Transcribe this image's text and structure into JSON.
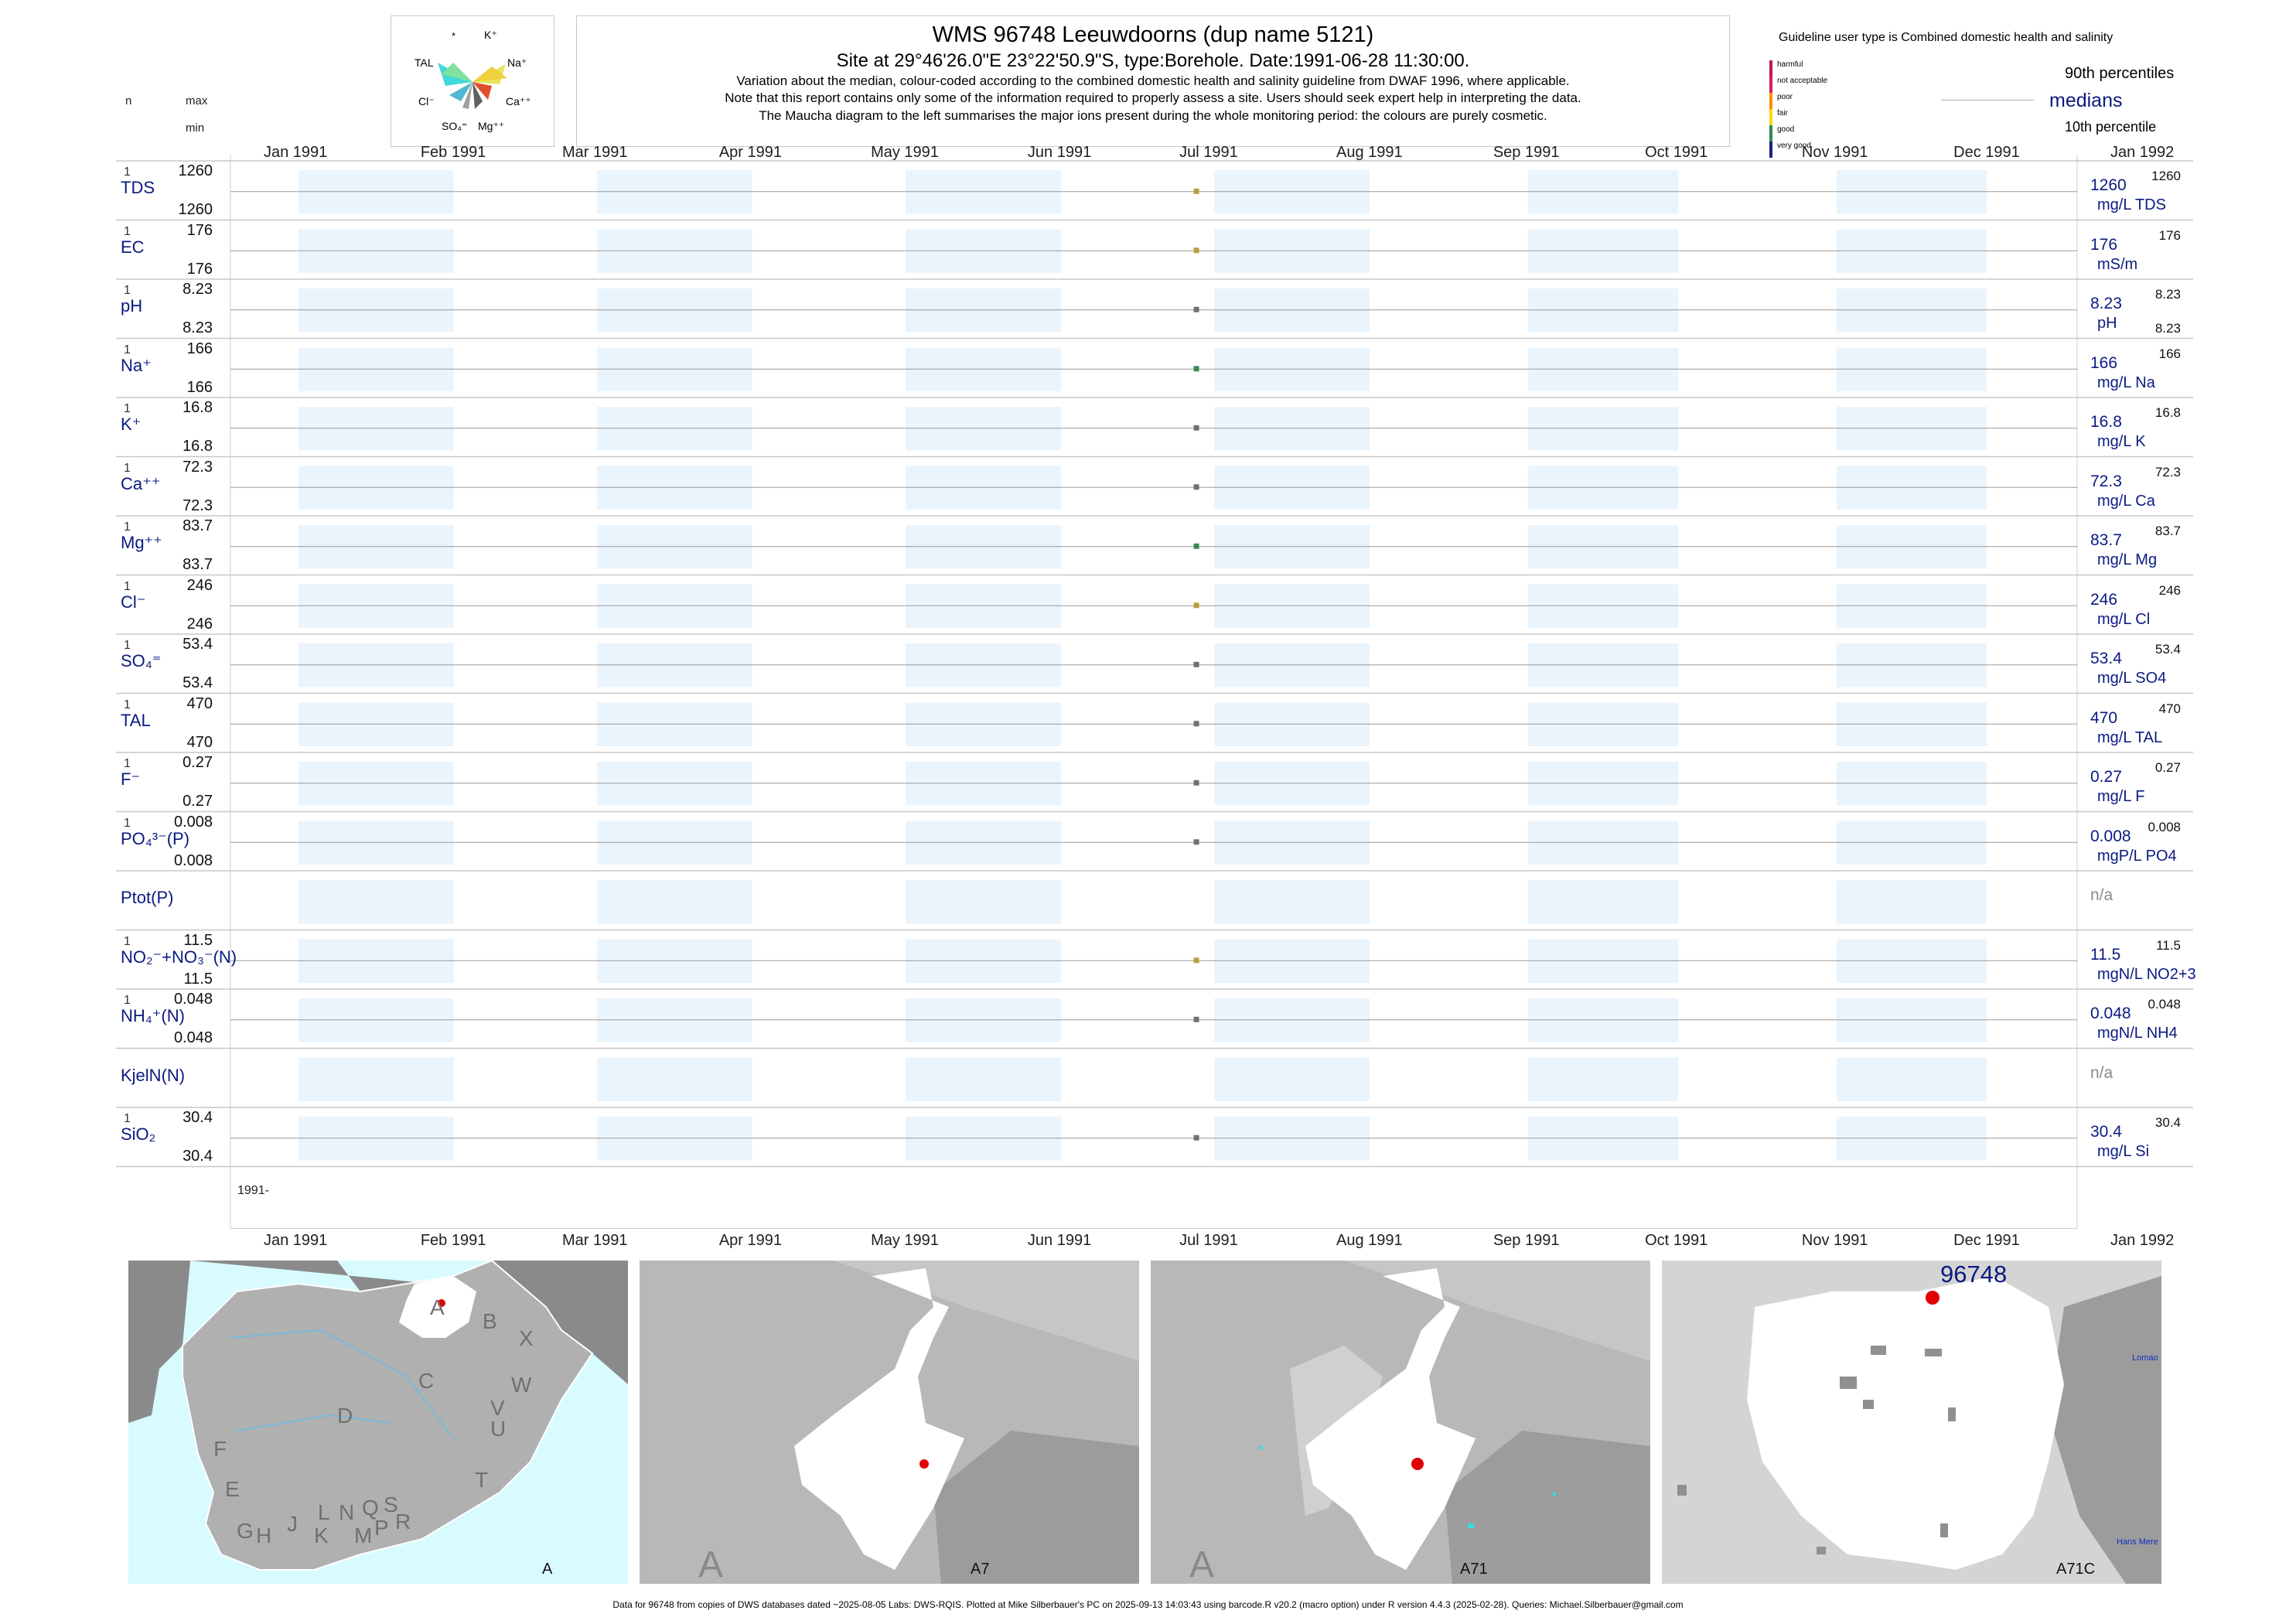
{
  "header": {
    "title": "WMS 96748  Leeuwdoorns (dup name 5121)",
    "subtitle": "Site at 29°46'26.0\"E 23°22'50.9\"S, type:Borehole. Date:1991-06-28 11:30:00.",
    "note1": "Variation about the median,  colour-coded according to the combined domestic health and salinity guideline from DWAF 1996, where applicable.",
    "note2": "Note that this report contains only some of the information required to properly assess a site. Users should seek expert help in interpreting the data.",
    "note3": "The Maucha diagram to the left summarises the major ions present during the whole monitoring period: the colours are purely cosmetic."
  },
  "left_header": {
    "n": "n",
    "max": "max",
    "min": "min"
  },
  "maucha": {
    "labels": [
      "*",
      "K⁺",
      "TAL",
      "Na⁺",
      "Cl⁻",
      "Ca⁺⁺",
      "SO₄⁼",
      "Mg⁺⁺"
    ]
  },
  "legend": {
    "title": "Guideline user type is Combined domestic health and salinity",
    "items": [
      "harmful",
      "not acceptable",
      "poor",
      "fair",
      "good",
      "very good"
    ],
    "colors": [
      "#c2185b",
      "#d81b60",
      "#ff8c00",
      "#ffd700",
      "#2e8b57",
      "#1a237e"
    ],
    "p90": "90th percentiles",
    "median": "medians",
    "p10": "10th percentile"
  },
  "chart_data": {
    "type": "scatter",
    "x_axis": {
      "ticks": [
        "Jan 1991",
        "Feb 1991",
        "Mar 1991",
        "Apr 1991",
        "May 1991",
        "Jun 1991",
        "Jul 1991",
        "Aug 1991",
        "Sep 1991",
        "Oct 1991",
        "Nov 1991",
        "Dec 1991",
        "Jan 1992"
      ],
      "range": [
        "1991-01-01",
        "1992-01-01"
      ]
    },
    "year_label": "1991-",
    "sample_date": "1991-06-28",
    "series": [
      {
        "name": "TDS",
        "n": "1",
        "max": "1260",
        "min": "1260",
        "median": "1260",
        "unit": "mg/L TDS",
        "p90": "1260",
        "p10": "",
        "value": 1260,
        "color": "#b8a040"
      },
      {
        "name": "EC",
        "n": "1",
        "max": "176",
        "min": "176",
        "median": "176",
        "unit": "mS/m",
        "p90": "176",
        "p10": "",
        "value": 176,
        "color": "#b8a040"
      },
      {
        "name": "pH",
        "n": "1",
        "max": "8.23",
        "min": "8.23",
        "median": "8.23",
        "unit": "pH",
        "p90": "8.23",
        "p10": "8.23",
        "value": 8.23,
        "color": "#707070"
      },
      {
        "name": "Na⁺",
        "n": "1",
        "max": "166",
        "min": "166",
        "median": "166",
        "unit": "mg/L Na",
        "p90": "166",
        "p10": "",
        "value": 166,
        "color": "#3a8a5a"
      },
      {
        "name": "K⁺",
        "n": "1",
        "max": "16.8",
        "min": "16.8",
        "median": "16.8",
        "unit": "mg/L K",
        "p90": "16.8",
        "p10": "",
        "value": 16.8,
        "color": "#707070"
      },
      {
        "name": "Ca⁺⁺",
        "n": "1",
        "max": "72.3",
        "min": "72.3",
        "median": "72.3",
        "unit": "mg/L Ca",
        "p90": "72.3",
        "p10": "",
        "value": 72.3,
        "color": "#707070"
      },
      {
        "name": "Mg⁺⁺",
        "n": "1",
        "max": "83.7",
        "min": "83.7",
        "median": "83.7",
        "unit": "mg/L Mg",
        "p90": "83.7",
        "p10": "",
        "value": 83.7,
        "color": "#3a8a5a"
      },
      {
        "name": "Cl⁻",
        "n": "1",
        "max": "246",
        "min": "246",
        "median": "246",
        "unit": "mg/L Cl",
        "p90": "246",
        "p10": "",
        "value": 246,
        "color": "#b8a040"
      },
      {
        "name": "SO₄⁼",
        "n": "1",
        "max": "53.4",
        "min": "53.4",
        "median": "53.4",
        "unit": "mg/L SO4",
        "p90": "53.4",
        "p10": "",
        "value": 53.4,
        "color": "#707070"
      },
      {
        "name": "TAL",
        "n": "1",
        "max": "470",
        "min": "470",
        "median": "470",
        "unit": "mg/L TAL",
        "p90": "470",
        "p10": "",
        "value": 470,
        "color": "#707070"
      },
      {
        "name": "F⁻",
        "n": "1",
        "max": "0.27",
        "min": "0.27",
        "median": "0.27",
        "unit": "mg/L F",
        "p90": "0.27",
        "p10": "",
        "value": 0.27,
        "color": "#707070"
      },
      {
        "name": "PO₄³⁻(P)",
        "n": "1",
        "max": "0.008",
        "min": "0.008",
        "median": "0.008",
        "unit": "mgP/L PO4",
        "p90": "0.008",
        "p10": "",
        "value": 0.008,
        "color": "#707070"
      },
      {
        "name": "Ptot(P)",
        "n": "",
        "max": "",
        "min": "",
        "median": "n/a",
        "unit": "",
        "p90": "",
        "p10": "",
        "value": null,
        "color": ""
      },
      {
        "name": "NO₂⁻+NO₃⁻(N)",
        "n": "1",
        "max": "11.5",
        "min": "11.5",
        "median": "11.5",
        "unit": "mgN/L NO2+3",
        "p90": "11.5",
        "p10": "",
        "value": 11.5,
        "color": "#b8a040"
      },
      {
        "name": "NH₄⁺(N)",
        "n": "1",
        "max": "0.048",
        "min": "0.048",
        "median": "0.048",
        "unit": "mgN/L NH4",
        "p90": "0.048",
        "p10": "",
        "value": 0.048,
        "color": "#707070"
      },
      {
        "name": "KjelN(N)",
        "n": "",
        "max": "",
        "min": "",
        "median": "n/a",
        "unit": "",
        "p90": "",
        "p10": "",
        "value": null,
        "color": ""
      },
      {
        "name": "SiO₂",
        "n": "1",
        "max": "30.4",
        "min": "30.4",
        "median": "30.4",
        "unit": "mg/L Si",
        "p90": "30.4",
        "p10": "",
        "value": 30.4,
        "color": "#707070"
      }
    ]
  },
  "maps": {
    "map1": {
      "label": "A",
      "regions": [
        "A",
        "B",
        "X",
        "C",
        "W",
        "D",
        "V",
        "U",
        "F",
        "E",
        "T",
        "G",
        "H",
        "J",
        "K",
        "L",
        "N",
        "Q",
        "S",
        "M",
        "P",
        "R"
      ]
    },
    "map2": {
      "label": "A7",
      "big": "A"
    },
    "map3": {
      "label": "A71",
      "big": "A"
    },
    "map4": {
      "label": "A71C",
      "site": "96748",
      "place1": "Lomao",
      "place2": "Hans Mere"
    }
  },
  "footer": "Data for 96748 from copies of DWS databases dated ~2025-08-05 Labs: DWS-RQIS. Plotted at Mike Silberbauer's PC on 2025-09-13 14:03:43 using barcode.R v20.2 (macro option) under R version 4.4.3 (2025-02-28). Queries: Michael.Silberbauer@gmail.com"
}
